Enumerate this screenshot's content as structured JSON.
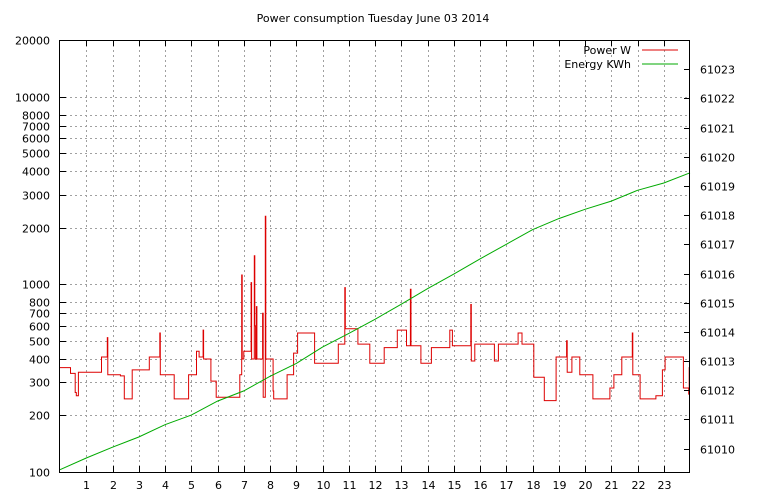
{
  "chart_data": {
    "type": "line",
    "title": "Power consumption Tuesday June 03 2014",
    "xlabel": "",
    "x_ticks": [
      1,
      2,
      3,
      4,
      5,
      6,
      7,
      8,
      9,
      10,
      11,
      12,
      13,
      14,
      15,
      16,
      17,
      18,
      19,
      20,
      21,
      22,
      23
    ],
    "xlim": [
      0,
      24
    ],
    "y_left": {
      "scale": "log",
      "ylim": [
        100,
        20000
      ],
      "ticks": [
        100,
        200,
        300,
        400,
        500,
        600,
        700,
        800,
        1000,
        2000,
        3000,
        4000,
        5000,
        6000,
        7000,
        8000,
        10000,
        20000
      ],
      "grid_ticks": [
        200,
        300,
        400,
        500,
        600,
        700,
        800,
        1000,
        2000,
        3000,
        4000,
        5000,
        6000,
        7000,
        8000,
        10000
      ]
    },
    "y_right": {
      "scale": "linear",
      "ylim": [
        61009.2,
        61024.0
      ],
      "ticks": [
        61010,
        61011,
        61012,
        61013,
        61014,
        61015,
        61016,
        61017,
        61018,
        61019,
        61020,
        61021,
        61022,
        61023
      ]
    },
    "grid": true,
    "legend_position": "top-right",
    "series": [
      {
        "name": "Power W",
        "color": "#dd0000",
        "axis": "left",
        "points": [
          [
            0.0,
            360
          ],
          [
            0.4,
            360
          ],
          [
            0.4,
            335
          ],
          [
            0.58,
            335
          ],
          [
            0.58,
            265
          ],
          [
            0.62,
            265
          ],
          [
            0.62,
            255
          ],
          [
            0.7,
            255
          ],
          [
            0.7,
            340
          ],
          [
            1.58,
            340
          ],
          [
            1.58,
            410
          ],
          [
            1.8,
            410
          ],
          [
            1.8,
            520
          ],
          [
            1.82,
            520
          ],
          [
            1.82,
            330
          ],
          [
            2.3,
            330
          ],
          [
            2.3,
            325
          ],
          [
            2.45,
            325
          ],
          [
            2.45,
            245
          ],
          [
            2.75,
            245
          ],
          [
            2.75,
            350
          ],
          [
            3.4,
            350
          ],
          [
            3.4,
            410
          ],
          [
            3.8,
            410
          ],
          [
            3.8,
            550
          ],
          [
            3.82,
            550
          ],
          [
            3.82,
            330
          ],
          [
            4.35,
            330
          ],
          [
            4.35,
            245
          ],
          [
            4.9,
            245
          ],
          [
            4.9,
            330
          ],
          [
            5.2,
            330
          ],
          [
            5.2,
            440
          ],
          [
            5.3,
            440
          ],
          [
            5.3,
            410
          ],
          [
            5.45,
            410
          ],
          [
            5.45,
            570
          ],
          [
            5.47,
            570
          ],
          [
            5.47,
            400
          ],
          [
            5.75,
            400
          ],
          [
            5.75,
            305
          ],
          [
            5.95,
            305
          ],
          [
            5.95,
            250
          ],
          [
            6.85,
            250
          ],
          [
            6.85,
            330
          ],
          [
            6.92,
            330
          ],
          [
            6.92,
            1120
          ],
          [
            6.94,
            1120
          ],
          [
            6.94,
            400
          ],
          [
            7.0,
            400
          ],
          [
            7.0,
            440
          ],
          [
            7.28,
            440
          ],
          [
            7.28,
            1020
          ],
          [
            7.3,
            1020
          ],
          [
            7.3,
            400
          ],
          [
            7.4,
            400
          ],
          [
            7.4,
            1420
          ],
          [
            7.42,
            1420
          ],
          [
            7.42,
            600
          ],
          [
            7.45,
            600
          ],
          [
            7.45,
            400
          ],
          [
            7.48,
            400
          ],
          [
            7.48,
            760
          ],
          [
            7.5,
            760
          ],
          [
            7.5,
            400
          ],
          [
            7.72,
            400
          ],
          [
            7.72,
            700
          ],
          [
            7.74,
            700
          ],
          [
            7.74,
            250
          ],
          [
            7.82,
            250
          ],
          [
            7.82,
            2300
          ],
          [
            7.84,
            2300
          ],
          [
            7.84,
            400
          ],
          [
            8.12,
            400
          ],
          [
            8.12,
            270
          ],
          [
            8.14,
            270
          ],
          [
            8.14,
            245
          ],
          [
            8.65,
            245
          ],
          [
            8.65,
            330
          ],
          [
            8.9,
            330
          ],
          [
            8.9,
            430
          ],
          [
            9.05,
            430
          ],
          [
            9.05,
            550
          ],
          [
            9.7,
            550
          ],
          [
            9.7,
            380
          ],
          [
            10.6,
            380
          ],
          [
            10.6,
            480
          ],
          [
            10.85,
            480
          ],
          [
            10.85,
            960
          ],
          [
            10.87,
            960
          ],
          [
            10.87,
            580
          ],
          [
            11.35,
            580
          ],
          [
            11.35,
            480
          ],
          [
            11.8,
            480
          ],
          [
            11.8,
            380
          ],
          [
            12.35,
            380
          ],
          [
            12.35,
            460
          ],
          [
            12.85,
            460
          ],
          [
            12.85,
            570
          ],
          [
            13.2,
            570
          ],
          [
            13.2,
            470
          ],
          [
            13.35,
            470
          ],
          [
            13.35,
            940
          ],
          [
            13.37,
            940
          ],
          [
            13.37,
            470
          ],
          [
            13.75,
            470
          ],
          [
            13.75,
            380
          ],
          [
            14.15,
            380
          ],
          [
            14.15,
            460
          ],
          [
            14.85,
            460
          ],
          [
            14.85,
            570
          ],
          [
            14.95,
            570
          ],
          [
            14.95,
            470
          ],
          [
            15.65,
            470
          ],
          [
            15.65,
            780
          ],
          [
            15.67,
            780
          ],
          [
            15.67,
            390
          ],
          [
            15.8,
            390
          ],
          [
            15.8,
            480
          ],
          [
            16.55,
            480
          ],
          [
            16.55,
            390
          ],
          [
            16.7,
            390
          ],
          [
            16.7,
            480
          ],
          [
            17.45,
            480
          ],
          [
            17.45,
            550
          ],
          [
            17.6,
            550
          ],
          [
            17.6,
            480
          ],
          [
            18.05,
            480
          ],
          [
            18.05,
            320
          ],
          [
            18.45,
            320
          ],
          [
            18.45,
            240
          ],
          [
            18.9,
            240
          ],
          [
            18.9,
            410
          ],
          [
            19.3,
            410
          ],
          [
            19.3,
            500
          ],
          [
            19.32,
            500
          ],
          [
            19.32,
            340
          ],
          [
            19.5,
            340
          ],
          [
            19.5,
            410
          ],
          [
            19.8,
            410
          ],
          [
            19.8,
            330
          ],
          [
            20.3,
            330
          ],
          [
            20.3,
            245
          ],
          [
            20.95,
            245
          ],
          [
            20.95,
            280
          ],
          [
            21.1,
            280
          ],
          [
            21.1,
            330
          ],
          [
            21.4,
            330
          ],
          [
            21.4,
            410
          ],
          [
            21.8,
            410
          ],
          [
            21.8,
            550
          ],
          [
            21.82,
            550
          ],
          [
            21.82,
            330
          ],
          [
            22.1,
            330
          ],
          [
            22.1,
            245
          ],
          [
            22.7,
            245
          ],
          [
            22.7,
            255
          ],
          [
            22.95,
            255
          ],
          [
            22.95,
            350
          ],
          [
            23.05,
            350
          ],
          [
            23.05,
            410
          ],
          [
            23.75,
            410
          ],
          [
            23.75,
            280
          ],
          [
            23.95,
            280
          ],
          [
            23.95,
            260
          ],
          [
            23.97,
            260
          ],
          [
            23.97,
            360
          ],
          [
            24.0,
            360
          ]
        ]
      },
      {
        "name": "Energy KWh",
        "color": "#00aa00",
        "axis": "right",
        "points": [
          [
            0,
            61009.28
          ],
          [
            1,
            61009.68
          ],
          [
            2,
            61010.05
          ],
          [
            3,
            61010.4
          ],
          [
            4,
            61010.82
          ],
          [
            5,
            61011.15
          ],
          [
            6,
            61011.63
          ],
          [
            7,
            61011.98
          ],
          [
            8,
            61012.48
          ],
          [
            9,
            61012.92
          ],
          [
            10,
            61013.48
          ],
          [
            11,
            61013.95
          ],
          [
            12,
            61014.43
          ],
          [
            13,
            61014.95
          ],
          [
            14,
            61015.48
          ],
          [
            15,
            61015.98
          ],
          [
            16,
            61016.5
          ],
          [
            17,
            61017.0
          ],
          [
            18,
            61017.5
          ],
          [
            19,
            61017.88
          ],
          [
            20,
            61018.2
          ],
          [
            21,
            61018.48
          ],
          [
            22,
            61018.85
          ],
          [
            23,
            61019.1
          ],
          [
            24,
            61019.45
          ]
        ]
      }
    ]
  }
}
